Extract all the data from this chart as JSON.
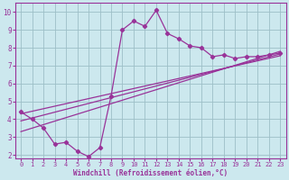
{
  "xlabel": "Windchill (Refroidissement éolien,°C)",
  "bg_color": "#cce8ee",
  "line_color": "#993399",
  "grid_color": "#9dbfc7",
  "xlim": [
    -0.5,
    23.5
  ],
  "ylim": [
    1.8,
    10.5
  ],
  "yticks": [
    2,
    3,
    4,
    5,
    6,
    7,
    8,
    9,
    10
  ],
  "xticks": [
    0,
    1,
    2,
    3,
    4,
    5,
    6,
    7,
    8,
    9,
    10,
    11,
    12,
    13,
    14,
    15,
    16,
    17,
    18,
    19,
    20,
    21,
    22,
    23
  ],
  "data_x": [
    0,
    1,
    2,
    3,
    4,
    5,
    6,
    7,
    8,
    9,
    10,
    11,
    12,
    13,
    14,
    15,
    16,
    17,
    18,
    19,
    20,
    21,
    22,
    23
  ],
  "data_y": [
    4.4,
    4.0,
    3.5,
    2.6,
    2.7,
    2.2,
    1.9,
    2.4,
    5.3,
    9.0,
    9.5,
    9.2,
    10.1,
    8.8,
    8.5,
    8.1,
    8.0,
    7.5,
    7.6,
    7.4,
    7.5,
    7.5,
    7.6,
    7.7
  ],
  "trend_lines": [
    {
      "x0": 0,
      "y0": 3.3,
      "x1": 23,
      "y1": 7.8
    },
    {
      "x0": 0,
      "y0": 3.9,
      "x1": 23,
      "y1": 7.65
    },
    {
      "x0": 0,
      "y0": 4.3,
      "x1": 23,
      "y1": 7.55
    }
  ]
}
